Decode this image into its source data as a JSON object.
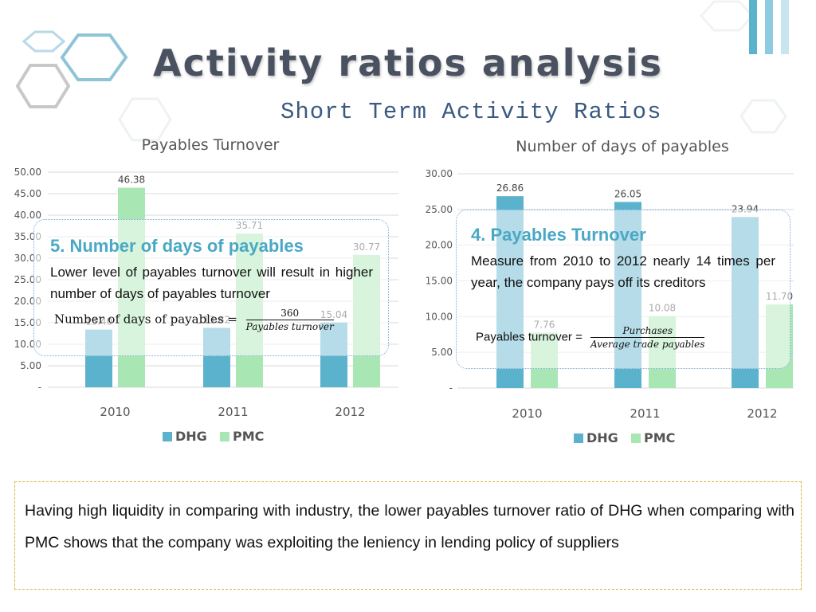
{
  "header": {
    "title": "Activity ratios analysis",
    "subtitle": "Short Term Activity Ratios"
  },
  "colors": {
    "DHG": "#5bb2cc",
    "PMC": "#a8e6b4",
    "title": "#4a5160",
    "accent": "#4aa8c4"
  },
  "chart_data": [
    {
      "type": "bar",
      "title": "Payables Turnover",
      "categories": [
        "2010",
        "2011",
        "2012"
      ],
      "series": [
        {
          "name": "DHG",
          "values": [
            13.4,
            13.82,
            15.04
          ],
          "labels": [
            "13.40",
            "13.82",
            "15.04"
          ]
        },
        {
          "name": "PMC",
          "values": [
            46.38,
            35.71,
            30.77
          ],
          "labels": [
            "46.38",
            "35.71",
            "30.77"
          ]
        }
      ],
      "ylim": [
        0,
        50
      ],
      "yticks": [
        "-",
        "5.00",
        "10.00",
        "15.00",
        "20.00",
        "25.00",
        "30.00",
        "35.00",
        "40.00",
        "45.00",
        "50.00"
      ],
      "legend": "bottom",
      "grid": true
    },
    {
      "type": "bar",
      "title": "Number of days of payables",
      "categories": [
        "2010",
        "2011",
        "2012"
      ],
      "series": [
        {
          "name": "DHG",
          "values": [
            26.86,
            26.05,
            23.94
          ],
          "labels": [
            "26.86",
            "26.05",
            "23.94"
          ]
        },
        {
          "name": "PMC",
          "values": [
            7.76,
            10.08,
            11.7
          ],
          "labels": [
            "7.76",
            "10.08",
            "11.70"
          ]
        }
      ],
      "ylim": [
        0,
        30
      ],
      "yticks": [
        "-",
        "5.00",
        "10.00",
        "15.00",
        "20.00",
        "25.00",
        "30.00"
      ],
      "legend": "bottom",
      "grid": true
    }
  ],
  "callout_left": {
    "heading": "5.  Number of days of payables",
    "text": "Lower level of payables turnover will result in higher number of days of payables turnover",
    "formula_label": "Number of days of payables =",
    "formula_num": "360",
    "formula_den": "Payables turnover"
  },
  "callout_right": {
    "heading": "4.   Payables Turnover",
    "text": "Measure from 2010 to 2012 nearly 14 times per year, the company pays off its creditors",
    "formula_label": "Payables turnover =",
    "formula_num": "Purchases",
    "formula_den": "Average trade payables"
  },
  "note": {
    "text": "Having high liquidity in comparing with industry, the lower payables turnover ratio of DHG when comparing with PMC shows that the company was exploiting the leniency in lending policy of suppliers"
  }
}
